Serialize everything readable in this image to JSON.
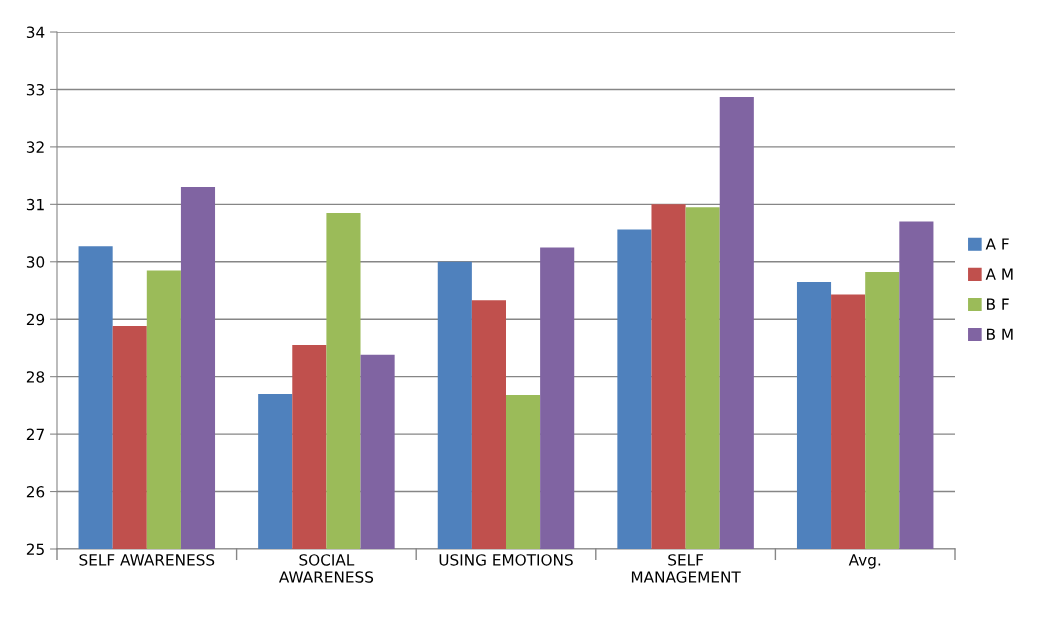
{
  "chart_data": {
    "type": "bar",
    "categories": [
      "SELF AWARENESS",
      "SOCIAL\nAWARENESS",
      "USING EMOTIONS",
      "SELF\nMANAGEMENT",
      "Avg."
    ],
    "series": [
      {
        "name": "A F",
        "color": "#4f81bd",
        "values": [
          30.27,
          27.7,
          30.0,
          30.56,
          29.65
        ]
      },
      {
        "name": "A M",
        "color": "#c0504d",
        "values": [
          28.88,
          28.55,
          29.33,
          31.0,
          29.43
        ]
      },
      {
        "name": "B F",
        "color": "#9bbb59",
        "values": [
          29.85,
          30.85,
          27.68,
          30.95,
          29.82
        ]
      },
      {
        "name": "B M",
        "color": "#8064a2",
        "values": [
          31.3,
          28.38,
          30.25,
          32.87,
          30.7
        ]
      }
    ],
    "ylim": [
      25,
      34
    ],
    "yticks": [
      25,
      26,
      27,
      28,
      29,
      30,
      31,
      32,
      33,
      34
    ],
    "grid": "y",
    "legend": "right"
  }
}
